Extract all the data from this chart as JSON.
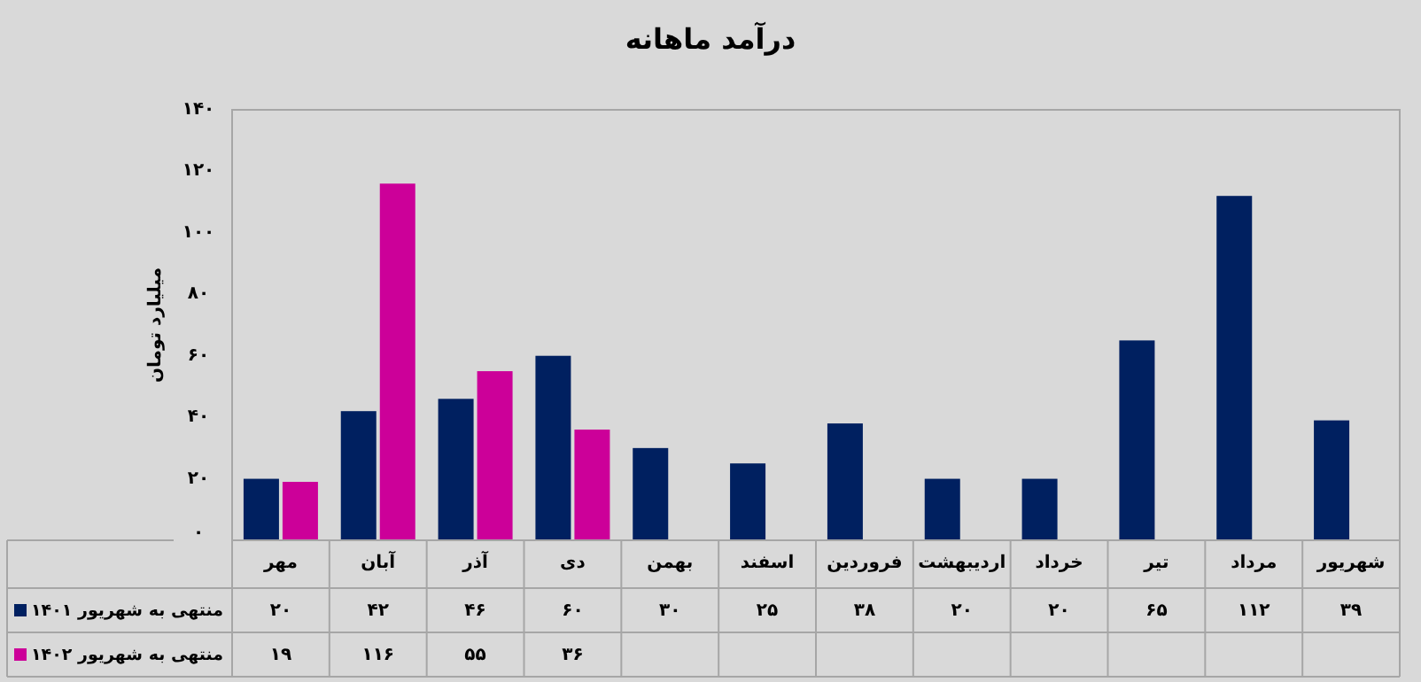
{
  "chart_data": {
    "type": "bar",
    "title": "درآمد ماهانه",
    "ylabel": "میلیارد تومان",
    "categories": [
      "مهر",
      "آبان",
      "آذر",
      "دی",
      "بهمن",
      "اسفند",
      "فروردین",
      "اردیبهشت",
      "خرداد",
      "تیر",
      "مرداد",
      "شهریور"
    ],
    "series": [
      {
        "name": "منتهی به شهریور ۱۴۰۱",
        "color": "#002060",
        "values": [
          20,
          42,
          46,
          60,
          30,
          25,
          38,
          20,
          20,
          65,
          112,
          39
        ],
        "value_labels": [
          "۲۰",
          "۴۲",
          "۴۶",
          "۶۰",
          "۳۰",
          "۲۵",
          "۳۸",
          "۲۰",
          "۲۰",
          "۶۵",
          "۱۱۲",
          "۳۹"
        ]
      },
      {
        "name": "منتهی به شهریور ۱۴۰۲",
        "color": "#cc0099",
        "values": [
          19,
          116,
          55,
          36,
          null,
          null,
          null,
          null,
          null,
          null,
          null,
          null
        ],
        "value_labels": [
          "۱۹",
          "۱۱۶",
          "۵۵",
          "۳۶",
          null,
          null,
          null,
          null,
          null,
          null,
          null,
          null
        ]
      }
    ],
    "ylim": [
      0,
      140
    ],
    "yticks": [
      {
        "value": 0,
        "label": "۰"
      },
      {
        "value": 20,
        "label": "۲۰"
      },
      {
        "value": 40,
        "label": "۴۰"
      },
      {
        "value": 60,
        "label": "۶۰"
      },
      {
        "value": 80,
        "label": "۸۰"
      },
      {
        "value": 100,
        "label": "۱۰۰"
      },
      {
        "value": 120,
        "label": "۱۲۰"
      },
      {
        "value": 140,
        "label": "۱۴۰"
      }
    ],
    "legend": "bottom"
  }
}
